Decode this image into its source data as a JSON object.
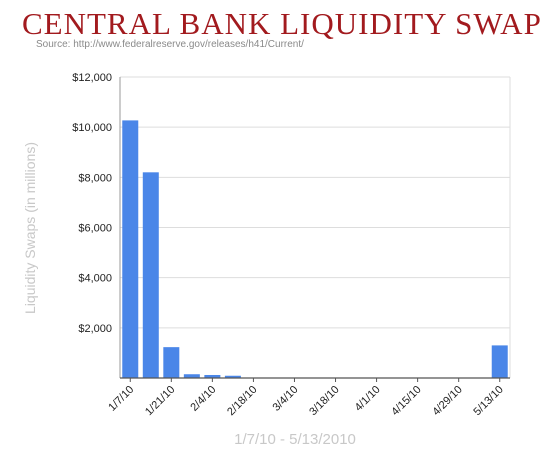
{
  "header": {
    "title": "CENTRAL BANK LIQUIDITY SWAPS",
    "source": "Source: http://www.federalreserve.gov/releases/h41/Current/"
  },
  "colors": {
    "title": "#a21a1e",
    "bar": "#4a86e8",
    "grid": "#dddddd",
    "axis_title": "#c8c8c8"
  },
  "chart_data": {
    "type": "bar",
    "title": "CENTRAL BANK LIQUIDITY SWAPS",
    "xlabel": "1/7/10 - 5/13/2010",
    "ylabel": "Liquidity Swaps (in millions)",
    "ylim": [
      0,
      12000
    ],
    "yticks": [
      "$2,000",
      "$4,000",
      "$6,000",
      "$8,000",
      "$10,000",
      "$12,000"
    ],
    "ytick_values": [
      2000,
      4000,
      6000,
      8000,
      10000,
      12000
    ],
    "xtick_labels": [
      "1/7/10",
      "1/21/10",
      "2/4/10",
      "2/18/10",
      "3/4/10",
      "3/18/10",
      "4/1/10",
      "4/15/10",
      "4/29/10",
      "5/13/10"
    ],
    "categories": [
      "1/7/10",
      "1/14/10",
      "1/21/10",
      "1/28/10",
      "2/4/10",
      "2/11/10",
      "2/18/10",
      "2/25/10",
      "3/4/10",
      "3/11/10",
      "3/18/10",
      "3/25/10",
      "4/1/10",
      "4/8/10",
      "4/15/10",
      "4/22/10",
      "4/29/10",
      "5/6/10",
      "5/13/10"
    ],
    "values": [
      10270,
      8200,
      1230,
      150,
      120,
      90,
      0,
      0,
      0,
      0,
      0,
      0,
      0,
      0,
      0,
      0,
      0,
      0,
      1300
    ],
    "grid": true,
    "legend": "none"
  }
}
